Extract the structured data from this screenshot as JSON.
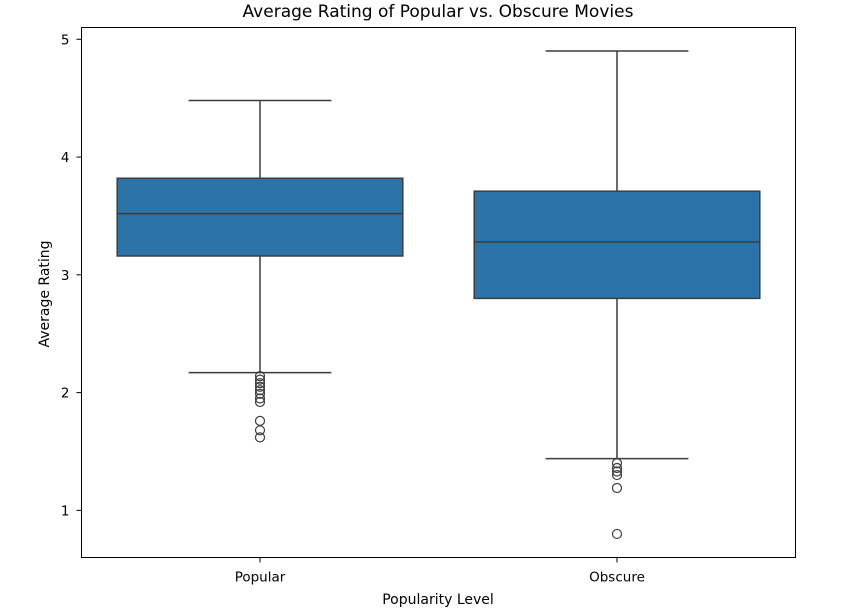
{
  "chart_data": {
    "type": "boxplot",
    "title": "Average Rating of Popular vs. Obscure Movies",
    "xlabel": "Popularity Level",
    "ylabel": "Average Rating",
    "ylim": [
      0.6,
      5.1
    ],
    "yticks": [
      1,
      2,
      3,
      4,
      5
    ],
    "grid": false,
    "box_color": "#2b73a8",
    "line_color": "#3d3d3d",
    "categories": [
      "Popular",
      "Obscure"
    ],
    "boxes": [
      {
        "category": "Popular",
        "whisker_low": 2.17,
        "q1": 3.16,
        "median": 3.52,
        "q3": 3.82,
        "whisker_high": 4.48,
        "outliers": [
          2.14,
          2.11,
          2.08,
          2.05,
          2.02,
          1.99,
          1.95,
          1.92,
          1.76,
          1.68,
          1.62
        ]
      },
      {
        "category": "Obscure",
        "whisker_low": 1.44,
        "q1": 2.8,
        "median": 3.28,
        "q3": 3.71,
        "whisker_high": 4.9,
        "outliers": [
          1.4,
          1.36,
          1.33,
          1.3,
          1.19,
          0.8
        ]
      }
    ]
  }
}
